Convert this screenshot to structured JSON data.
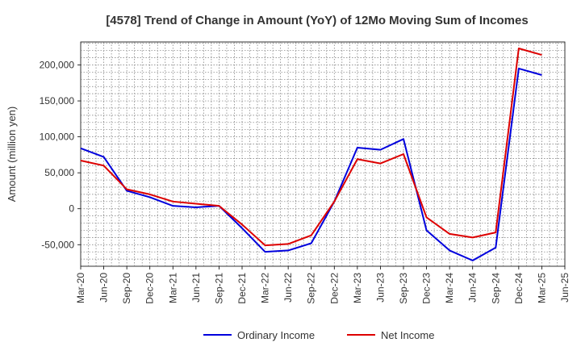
{
  "chart_data": {
    "type": "line",
    "title": "[4578]  Trend of Change in Amount (YoY) of 12Mo Moving Sum of Incomes",
    "ylabel": "Amount (million yen)",
    "xlabel": "",
    "ylim": [
      -80000,
      232000
    ],
    "yticks": [
      -50000,
      0,
      50000,
      100000,
      150000,
      200000
    ],
    "ytick_labels": [
      "-50,000",
      "0",
      "50,000",
      "100,000",
      "150,000",
      "200,000"
    ],
    "categories": [
      "Mar-20",
      "Jun-20",
      "Sep-20",
      "Dec-20",
      "Mar-21",
      "Jun-21",
      "Sep-21",
      "Dec-21",
      "Mar-22",
      "Jun-22",
      "Sep-22",
      "Dec-22",
      "Mar-23",
      "Jun-23",
      "Sep-23",
      "Dec-23",
      "Mar-24",
      "Jun-24",
      "Sep-24",
      "Dec-24",
      "Mar-25",
      "Jun-25"
    ],
    "series": [
      {
        "name": "Ordinary Income",
        "color": "#0000dd",
        "values": [
          84000,
          72000,
          25000,
          16000,
          4000,
          2000,
          4000,
          -27000,
          -60000,
          -58000,
          -48000,
          10000,
          85000,
          82000,
          97000,
          -30000,
          -58000,
          -72000,
          -54000,
          195000,
          186000,
          null
        ]
      },
      {
        "name": "Net Income",
        "color": "#dd0000",
        "values": [
          67000,
          60000,
          27000,
          20000,
          10000,
          7000,
          4000,
          -22000,
          -51000,
          -49000,
          -37000,
          10000,
          69000,
          63000,
          76000,
          -12000,
          -35000,
          -40000,
          -33000,
          223000,
          214000,
          null
        ]
      }
    ],
    "grid": true,
    "legend_position": "bottom-center"
  }
}
